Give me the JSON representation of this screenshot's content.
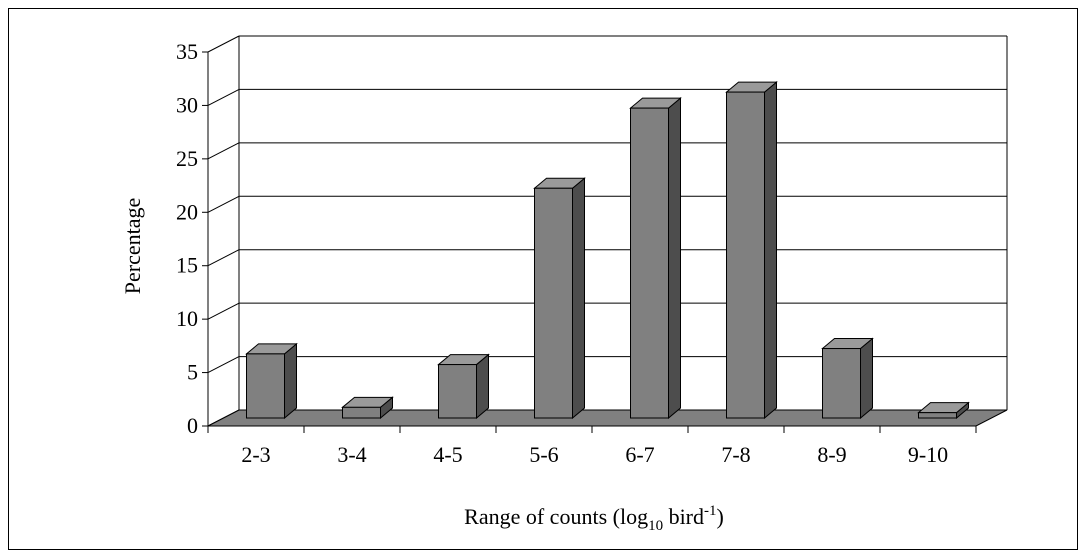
{
  "chart_data": {
    "type": "bar",
    "style": "3d",
    "categories": [
      "2-3",
      "3-4",
      "4-5",
      "5-6",
      "6-7",
      "7-8",
      "8-9",
      "9-10"
    ],
    "values": [
      6.0,
      1.0,
      5.0,
      21.5,
      29.0,
      30.5,
      6.5,
      0.5
    ],
    "ylim": [
      0,
      35
    ],
    "yticks": [
      0,
      5,
      10,
      15,
      20,
      25,
      30,
      35
    ],
    "ylabel": "Percentage",
    "xlabel": {
      "prefix": "Range of counts (log",
      "sub": "10",
      "mid": " bird",
      "sup": "-1",
      "suffix": ")"
    },
    "grid": true,
    "legend": "none",
    "colors": {
      "bar_front": "#808080",
      "bar_side": "#4d4d4d",
      "bar_top": "#9a9a9a",
      "floor": "#808080",
      "grid": "#000000"
    }
  }
}
